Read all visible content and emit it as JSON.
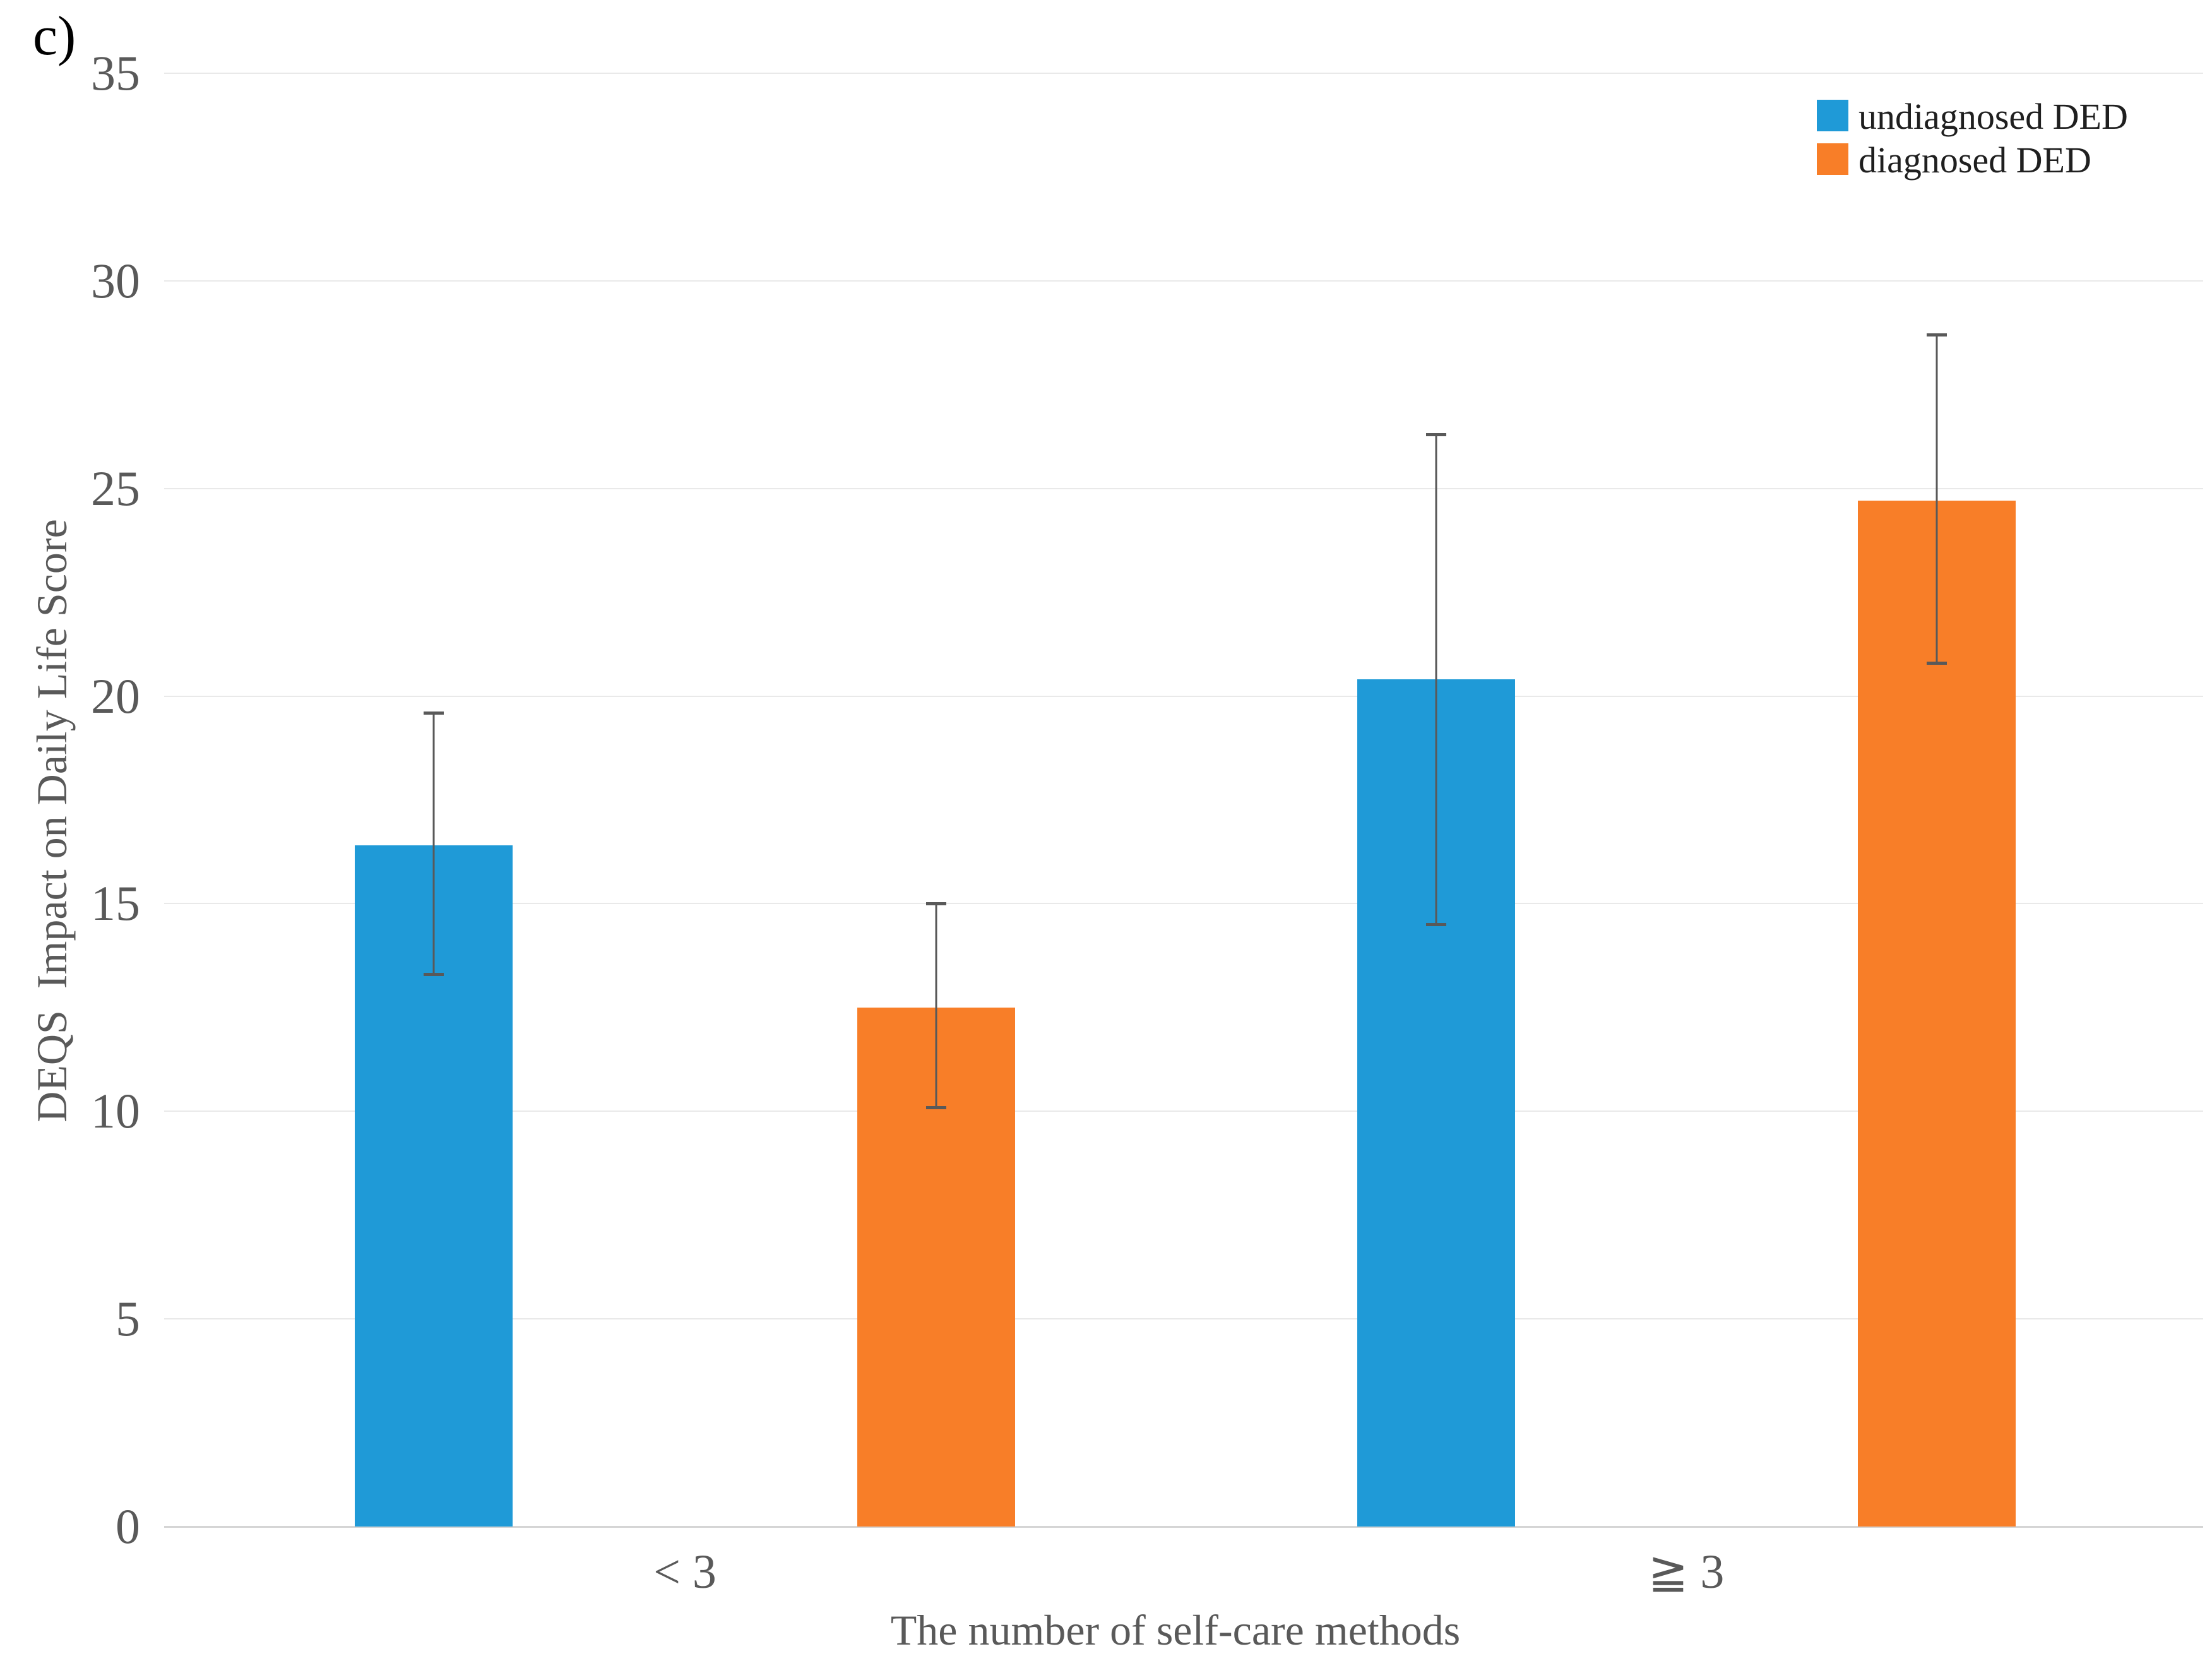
{
  "panel_label": "c)",
  "legend": {
    "position": "top-right",
    "items": [
      {
        "label": "undiagnosed DED",
        "color": "#1f9ad7"
      },
      {
        "label": "diagnosed DED",
        "color": "#f87e28"
      }
    ]
  },
  "chart_data": {
    "type": "bar",
    "title": "",
    "categories": [
      "< 3",
      "≧ 3"
    ],
    "series": [
      {
        "name": "undiagnosed DED",
        "color": "#1f9ad7",
        "values": [
          16.4,
          20.4
        ],
        "error_upper": [
          19.6,
          26.3
        ],
        "error_lower": [
          13.3,
          14.5
        ]
      },
      {
        "name": "diagnosed DED",
        "color": "#f87e28",
        "values": [
          12.5,
          24.7
        ],
        "error_upper": [
          15.0,
          28.7
        ],
        "error_lower": [
          10.1,
          20.8
        ]
      }
    ],
    "xlabel": "The number of self-care methods",
    "ylabel": "DEQS  Impact on Daily Life Score",
    "ylim": [
      0,
      35
    ],
    "yticks": [
      0,
      5,
      10,
      15,
      20,
      25,
      30,
      35
    ],
    "grid": true,
    "error_bar_color": "#595959",
    "gridline_color": "#e9e9e9",
    "axis_text_color": "#595959",
    "legend_position": "top-right"
  }
}
